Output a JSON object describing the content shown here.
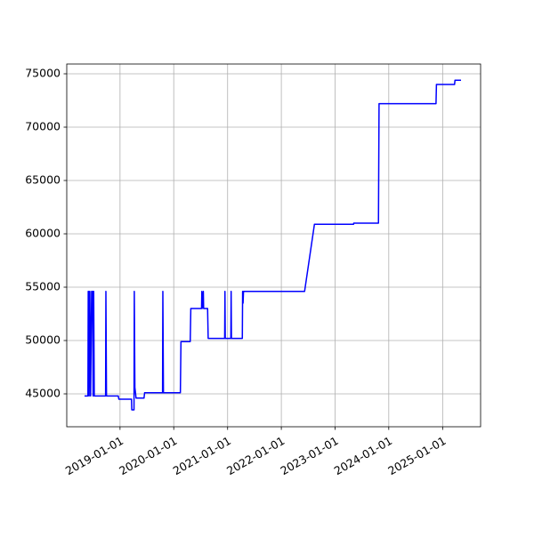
{
  "chart_data": {
    "type": "line",
    "x": [
      "2018-05-05",
      "2018-05-28",
      "2018-05-30",
      "2018-06-03",
      "2018-06-05",
      "2018-06-10",
      "2018-06-15",
      "2018-06-22",
      "2018-06-28",
      "2018-07-02",
      "2018-07-06",
      "2018-07-10",
      "2018-09-25",
      "2018-09-27",
      "2018-10-01",
      "2018-12-20",
      "2018-12-24",
      "2019-03-20",
      "2019-03-22",
      "2019-04-06",
      "2019-04-08",
      "2019-04-12",
      "2019-04-20",
      "2019-06-13",
      "2019-06-17",
      "2019-10-17",
      "2019-10-19",
      "2019-10-23",
      "2020-02-15",
      "2020-02-19",
      "2020-04-22",
      "2020-04-26",
      "2020-07-08",
      "2020-07-10",
      "2020-07-12",
      "2020-07-20",
      "2020-07-22",
      "2020-08-18",
      "2020-08-22",
      "2020-12-12",
      "2020-12-14",
      "2020-12-16",
      "2021-01-23",
      "2021-01-25",
      "2021-01-27",
      "2021-04-11",
      "2021-04-13",
      "2021-04-16",
      "2021-04-19",
      "2022-06-08",
      "2022-08-14",
      "2023-05-07",
      "2023-05-08",
      "2023-10-23",
      "2023-10-27",
      "2024-11-17",
      "2024-11-20",
      "2025-03-23",
      "2025-03-26",
      "2025-05-06"
    ],
    "series": [
      {
        "color": "#0000ff",
        "values": [
          44800,
          44800,
          54600,
          54600,
          44800,
          54600,
          44800,
          54600,
          54600,
          44800,
          54600,
          44800,
          44800,
          54600,
          44800,
          44800,
          44500,
          44500,
          43500,
          43500,
          54600,
          45600,
          44600,
          44600,
          45100,
          45100,
          54600,
          45100,
          45100,
          49900,
          49900,
          53000,
          53000,
          54600,
          53000,
          54600,
          53000,
          53000,
          50200,
          50200,
          54600,
          50200,
          50200,
          54600,
          50200,
          50200,
          54600,
          53500,
          54600,
          54600,
          60900,
          60900,
          61000,
          61000,
          72200,
          72200,
          74000,
          74000,
          74400,
          74400
        ]
      }
    ],
    "xlim": [
      "2018-01-04",
      "2025-09-16"
    ],
    "xticks": [
      "2019-01-01",
      "2020-01-01",
      "2021-01-01",
      "2022-01-01",
      "2023-01-01",
      "2024-01-01",
      "2025-01-01"
    ],
    "ylim": [
      41917,
      75917
    ],
    "yticks": [
      45000,
      50000,
      55000,
      60000,
      65000,
      70000,
      75000
    ],
    "grid": true
  }
}
